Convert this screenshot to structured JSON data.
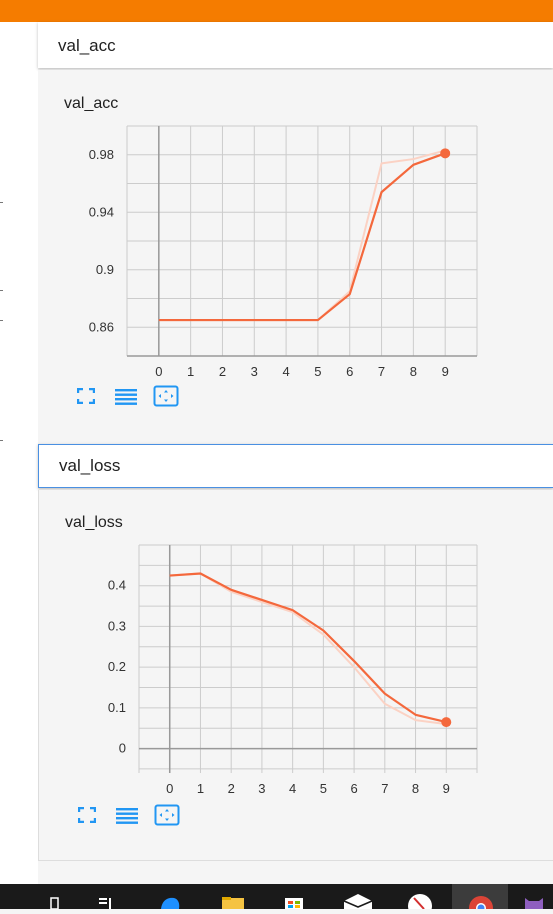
{
  "panels": [
    {
      "header_title": "val_acc",
      "chart_data": {
        "type": "line",
        "title": "val_acc",
        "x": [
          0,
          1,
          2,
          3,
          4,
          5,
          6,
          7,
          8,
          9
        ],
        "series": [
          {
            "role": "raw",
            "values": [
              0.865,
              0.865,
              0.865,
              0.865,
              0.865,
              0.865,
              0.885,
              0.974,
              0.977,
              0.983
            ]
          },
          {
            "role": "smoothed",
            "values": [
              0.865,
              0.865,
              0.865,
              0.865,
              0.865,
              0.865,
              0.883,
              0.954,
              0.973,
              0.981
            ]
          }
        ],
        "xticks": [
          "0",
          "1",
          "2",
          "3",
          "4",
          "5",
          "6",
          "7",
          "8",
          "9"
        ],
        "yticks": [
          "0.86",
          "0.9",
          "0.94",
          "0.98"
        ],
        "ytick_values": [
          0.86,
          0.9,
          0.94,
          0.98
        ],
        "xlim": [
          -1,
          10
        ],
        "ylim": [
          0.84,
          1.0
        ],
        "grid": true,
        "color": "#f4683c",
        "raw_color": "#fbd2c4"
      }
    },
    {
      "header_title": "val_loss",
      "chart_data": {
        "type": "line",
        "title": "val_loss",
        "x": [
          0,
          1,
          2,
          3,
          4,
          5,
          6,
          7,
          8,
          9
        ],
        "series": [
          {
            "role": "raw",
            "values": [
              0.425,
              0.43,
              0.385,
              0.36,
              0.335,
              0.28,
              0.2,
              0.11,
              0.07,
              0.06
            ]
          },
          {
            "role": "smoothed",
            "values": [
              0.425,
              0.43,
              0.39,
              0.365,
              0.34,
              0.29,
              0.215,
              0.135,
              0.083,
              0.065
            ]
          }
        ],
        "xticks": [
          "0",
          "1",
          "2",
          "3",
          "4",
          "5",
          "6",
          "7",
          "8",
          "9"
        ],
        "yticks": [
          "0",
          "0.1",
          "0.2",
          "0.3",
          "0.4"
        ],
        "ytick_values": [
          0,
          0.1,
          0.2,
          0.3,
          0.4
        ],
        "xlim": [
          -1,
          10
        ],
        "ylim": [
          -0.06,
          0.5
        ],
        "grid": true,
        "color": "#f4683c",
        "raw_color": "#fbd2c4"
      }
    }
  ],
  "toolbar": {
    "icons": [
      "fullscreen-icon",
      "toggle-log-scale-icon",
      "fit-domain-icon"
    ],
    "accent": "#2196f3"
  },
  "taskbar": {
    "icons": [
      "search-icon",
      "task-view-icon",
      "edge-icon",
      "file-explorer-icon",
      "store-icon",
      "mail-icon",
      "snipping-tool-icon",
      "chrome-icon",
      "github-icon"
    ]
  }
}
